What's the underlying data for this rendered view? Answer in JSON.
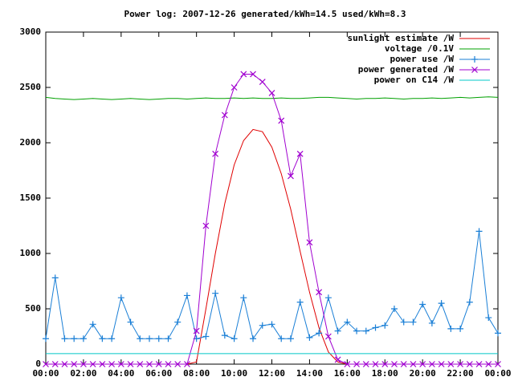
{
  "chart_data": {
    "type": "line",
    "title": "Power log: 2007-12-26 generated/kWh=14.5 used/kWh=8.3",
    "x": [
      0,
      0.5,
      1,
      1.5,
      2,
      2.5,
      3,
      3.5,
      4,
      4.5,
      5,
      5.5,
      6,
      6.5,
      7,
      7.5,
      8,
      8.5,
      9,
      9.5,
      10,
      10.5,
      11,
      11.5,
      12,
      12.5,
      13,
      13.5,
      14,
      14.5,
      15,
      15.5,
      16,
      16.5,
      17,
      17.5,
      18,
      18.5,
      19,
      19.5,
      20,
      20.5,
      21,
      21.5,
      22,
      22.5,
      23,
      23.5,
      24
    ],
    "xlim": [
      0,
      24
    ],
    "xticks": [
      {
        "value": 0,
        "label": "00:00"
      },
      {
        "value": 2,
        "label": "02:00"
      },
      {
        "value": 4,
        "label": "04:00"
      },
      {
        "value": 6,
        "label": "06:00"
      },
      {
        "value": 8,
        "label": "08:00"
      },
      {
        "value": 10,
        "label": "10:00"
      },
      {
        "value": 12,
        "label": "12:00"
      },
      {
        "value": 14,
        "label": "14:00"
      },
      {
        "value": 16,
        "label": "16:00"
      },
      {
        "value": 18,
        "label": "18:00"
      },
      {
        "value": 20,
        "label": "20:00"
      },
      {
        "value": 22,
        "label": "22:00"
      },
      {
        "value": 24,
        "label": "00:00"
      }
    ],
    "ylim": [
      0,
      3000
    ],
    "yticks": [
      0,
      500,
      1000,
      1500,
      2000,
      2500,
      3000
    ],
    "legend": "upper right",
    "series": [
      {
        "name": "sunlight estimate /W",
        "color": "#e00000",
        "marker": "none",
        "values": [
          0,
          0,
          0,
          0,
          0,
          0,
          0,
          0,
          0,
          0,
          0,
          0,
          0,
          0,
          0,
          0,
          20,
          500,
          1000,
          1450,
          1800,
          2020,
          2120,
          2100,
          1960,
          1720,
          1400,
          1020,
          650,
          330,
          110,
          20,
          0,
          0,
          0,
          0,
          0,
          0,
          0,
          0,
          0,
          0,
          0,
          0,
          0,
          0,
          0,
          0,
          0
        ]
      },
      {
        "name": "voltage /0.1V",
        "color": "#00a000",
        "marker": "none",
        "values": [
          2410,
          2400,
          2395,
          2390,
          2395,
          2400,
          2395,
          2390,
          2395,
          2400,
          2395,
          2390,
          2395,
          2400,
          2400,
          2395,
          2400,
          2405,
          2400,
          2400,
          2405,
          2400,
          2405,
          2400,
          2400,
          2405,
          2400,
          2400,
          2405,
          2410,
          2410,
          2405,
          2400,
          2395,
          2400,
          2400,
          2405,
          2400,
          2395,
          2400,
          2400,
          2405,
          2400,
          2405,
          2410,
          2405,
          2410,
          2415,
          2410
        ]
      },
      {
        "name": "power use /W",
        "color": "#1a7fd6",
        "marker": "+",
        "values": [
          230,
          780,
          230,
          230,
          230,
          360,
          230,
          230,
          600,
          380,
          230,
          230,
          230,
          230,
          380,
          620,
          230,
          250,
          640,
          260,
          230,
          600,
          230,
          350,
          360,
          230,
          230,
          560,
          240,
          280,
          600,
          300,
          380,
          300,
          300,
          330,
          350,
          500,
          380,
          380,
          540,
          370,
          550,
          320,
          320,
          560,
          1200,
          420,
          280
        ]
      },
      {
        "name": "power generated /W",
        "color": "#a000d0",
        "marker": "x",
        "values": [
          0,
          0,
          0,
          0,
          0,
          0,
          0,
          0,
          0,
          0,
          0,
          0,
          0,
          0,
          0,
          0,
          300,
          1250,
          1900,
          2250,
          2500,
          2620,
          2620,
          2550,
          2450,
          2200,
          1700,
          1900,
          1100,
          650,
          250,
          40,
          0,
          0,
          0,
          0,
          0,
          0,
          0,
          0,
          0,
          0,
          0,
          0,
          0,
          0,
          0,
          0,
          0
        ]
      },
      {
        "name": "power on C14 /W",
        "color": "#00c8c8",
        "marker": "none",
        "values": [
          95,
          95,
          95,
          95,
          95,
          95,
          95,
          95,
          95,
          95,
          95,
          95,
          95,
          95,
          95,
          95,
          95,
          95,
          95,
          95,
          95,
          95,
          95,
          95,
          95,
          95,
          95,
          95,
          95,
          95,
          95,
          95,
          95,
          95,
          95,
          95,
          95,
          95,
          95,
          95,
          95,
          95,
          95,
          95,
          95,
          95,
          95,
          95,
          95
        ]
      }
    ]
  }
}
